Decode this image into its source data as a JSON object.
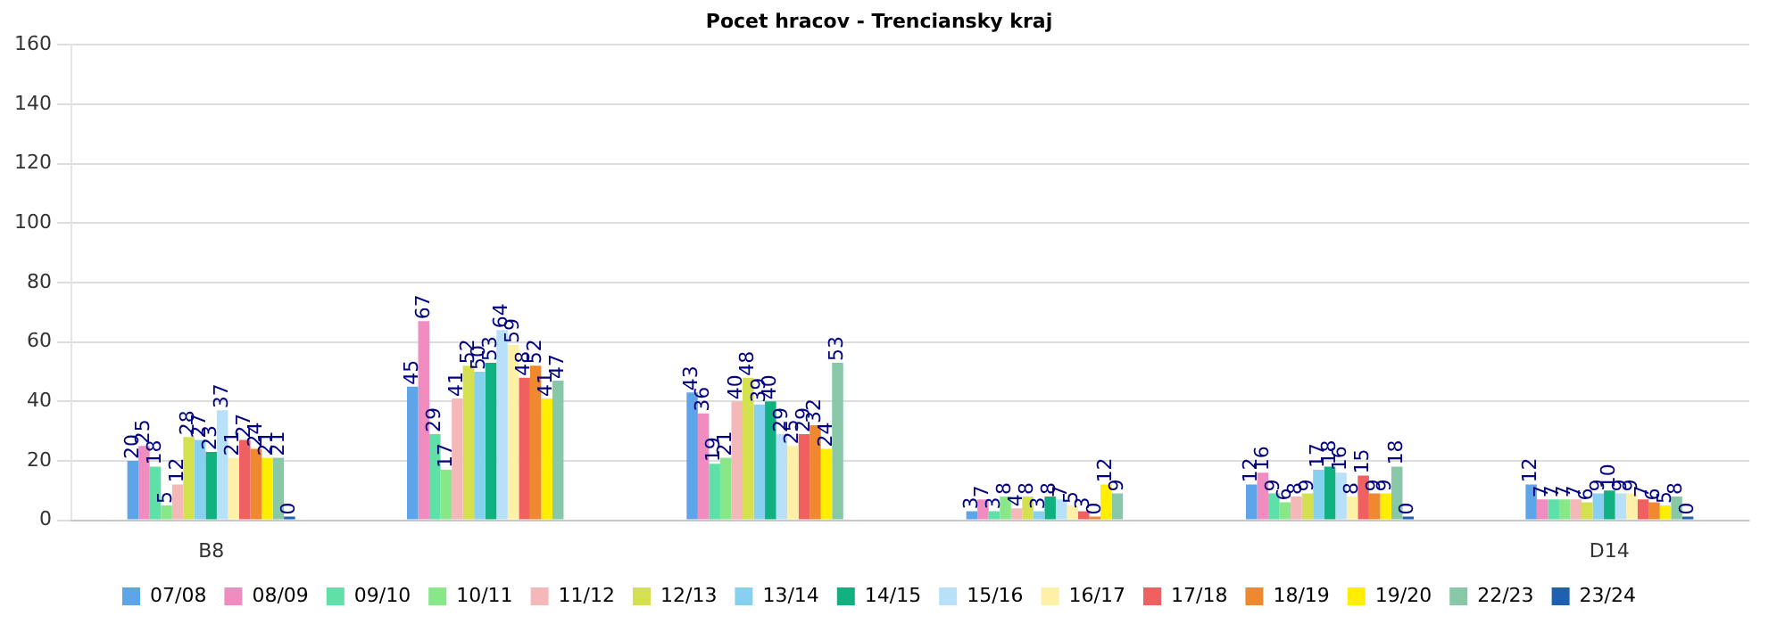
{
  "chart_data": {
    "type": "bar",
    "title": "Pocet hracov - Trenciansky kraj",
    "categories": [
      "B8",
      null,
      null,
      null,
      null,
      "D14"
    ],
    "ylim": [
      0,
      160
    ],
    "yticks": [
      0,
      20,
      40,
      60,
      80,
      100,
      120,
      140,
      160
    ],
    "grid": "y",
    "legend": "bottom",
    "data_labels": true,
    "series": [
      {
        "name": "07/08",
        "color": "#5da5e8",
        "values": [
          20,
          45,
          43,
          3,
          12,
          12
        ]
      },
      {
        "name": "08/09",
        "color": "#f08cc0",
        "values": [
          25,
          67,
          36,
          7,
          16,
          7
        ]
      },
      {
        "name": "09/10",
        "color": "#5fe0a8",
        "values": [
          18,
          29,
          19,
          3,
          9,
          7
        ]
      },
      {
        "name": "10/11",
        "color": "#88e888",
        "values": [
          5,
          17,
          21,
          8,
          6,
          7
        ]
      },
      {
        "name": "11/12",
        "color": "#f4b8b8",
        "values": [
          12,
          41,
          40,
          4,
          8,
          7
        ]
      },
      {
        "name": "12/13",
        "color": "#d4e050",
        "values": [
          28,
          52,
          48,
          8,
          9,
          6
        ]
      },
      {
        "name": "13/14",
        "color": "#88d0f0",
        "values": [
          27,
          50,
          39,
          3,
          17,
          9
        ]
      },
      {
        "name": "14/15",
        "color": "#10b080",
        "values": [
          23,
          53,
          40,
          8,
          18,
          10
        ]
      },
      {
        "name": "15/16",
        "color": "#b8e0f8",
        "values": [
          37,
          64,
          29,
          7,
          16,
          9
        ]
      },
      {
        "name": "16/17",
        "color": "#fff0a8",
        "values": [
          21,
          59,
          25,
          5,
          8,
          9
        ]
      },
      {
        "name": "17/18",
        "color": "#f06060",
        "values": [
          27,
          48,
          29,
          3,
          15,
          7
        ]
      },
      {
        "name": "18/19",
        "color": "#f08830",
        "values": [
          24,
          52,
          32,
          0,
          9,
          6
        ]
      },
      {
        "name": "19/20",
        "color": "#ffee00",
        "values": [
          21,
          41,
          24,
          12,
          9,
          5
        ]
      },
      {
        "name": "22/23",
        "color": "#88c8a8",
        "values": [
          21,
          47,
          53,
          9,
          18,
          8
        ]
      },
      {
        "name": "23/24",
        "color": "#2060b0",
        "values": [
          0,
          null,
          null,
          null,
          0,
          0
        ]
      }
    ]
  }
}
